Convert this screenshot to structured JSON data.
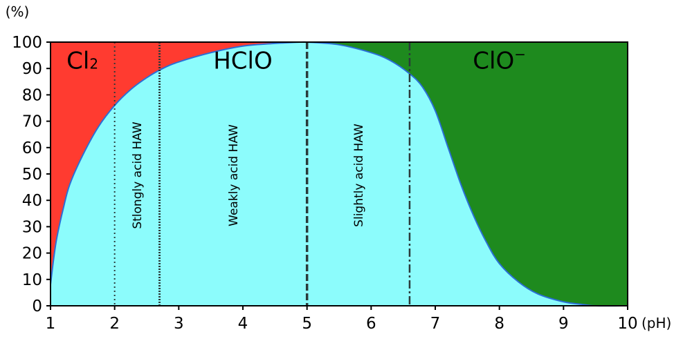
{
  "chart_data": {
    "type": "area",
    "title": "",
    "xlabel": "(pH)",
    "ylabel": "(%)",
    "xlim": [
      1,
      10
    ],
    "ylim": [
      0,
      100
    ],
    "x_ticks": [
      1,
      2,
      3,
      4,
      5,
      6,
      7,
      8,
      9,
      10
    ],
    "y_ticks": [
      0,
      10,
      20,
      30,
      40,
      50,
      60,
      70,
      80,
      90,
      100
    ],
    "grid": false,
    "colors": {
      "cl2": "#ff3b30",
      "hclo": "#8cfcfc",
      "clo": "#1e8a1e",
      "curve": "#2b6fd6"
    },
    "x": [
      1.0,
      1.05,
      1.1,
      1.2,
      1.3,
      1.5,
      1.75,
      2.0,
      2.25,
      2.5,
      2.75,
      3.0,
      3.5,
      4.0,
      4.5,
      4.9,
      5.0,
      5.5,
      6.0,
      6.3,
      6.6,
      6.8,
      7.0,
      7.2,
      7.4,
      7.6,
      7.8,
      8.0,
      8.3,
      8.6,
      9.0,
      9.3,
      9.5,
      10.0
    ],
    "series": [
      {
        "key": "hclo_upper",
        "values": [
          8,
          18,
          26,
          37,
          46,
          57,
          68,
          76,
          82,
          86.5,
          90,
          92.5,
          96,
          98.5,
          99.5,
          100,
          100,
          99,
          96,
          93,
          88,
          83,
          74,
          60,
          46,
          34,
          24,
          16,
          9,
          4.5,
          1.5,
          0.5,
          0,
          0
        ]
      },
      {
        "key": "clo_lower",
        "values": [
          100,
          100,
          100,
          100,
          100,
          100,
          100,
          100,
          100,
          100,
          100,
          100,
          100,
          100,
          100,
          100,
          100,
          99,
          96,
          93,
          88,
          83,
          74,
          60,
          46,
          34,
          24,
          16,
          9,
          4.5,
          1.5,
          0.5,
          0,
          0
        ]
      }
    ],
    "regions": [
      {
        "name": "Cl2",
        "label_main": "Cl",
        "label_sub": "2"
      },
      {
        "name": "HClO",
        "label_main": "HClO"
      },
      {
        "name": "ClO-",
        "label_main": "ClO",
        "label_sup": "−"
      }
    ],
    "boundaries": [
      {
        "x": 2.0,
        "style": "dotted"
      },
      {
        "x": 2.7,
        "style": "dotted-bold"
      },
      {
        "x": 5.0,
        "style": "dashed-bold"
      },
      {
        "x": 6.6,
        "style": "dashdot"
      }
    ],
    "bands": [
      {
        "label": "Stlongly acid HAW",
        "x_from": 2.0,
        "x_to": 2.7
      },
      {
        "label": "Weakly acid HAW",
        "x_from": 2.7,
        "x_to": 5.0
      },
      {
        "label": "Slightly acid HAW",
        "x_from": 5.0,
        "x_to": 6.6
      }
    ]
  }
}
